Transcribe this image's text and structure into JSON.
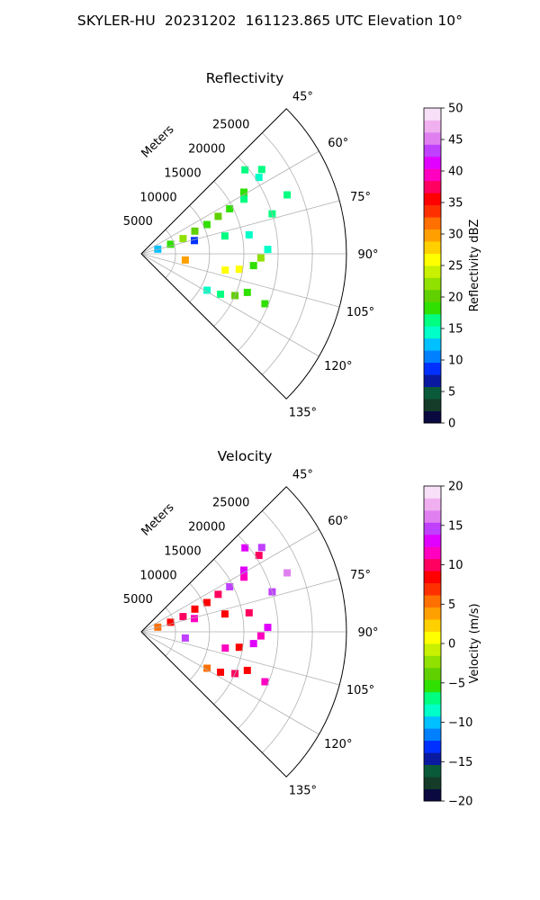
{
  "figure": {
    "title": "SKYLER-HU  20231202  161123.865 UTC Elevation 10°"
  },
  "chart_data": [
    {
      "type": "heatmap",
      "projection": "polar-sector",
      "title": "Reflectivity",
      "radial_label": "Meters",
      "radial_ticks": [
        "5000",
        "10000",
        "15000",
        "20000",
        "25000"
      ],
      "radial_range": [
        0,
        30000
      ],
      "angle_ticks": [
        "45°",
        "60°",
        "75°",
        "90°",
        "105°",
        "120°",
        "135°"
      ],
      "angle_range": [
        45,
        135
      ],
      "grid": true,
      "colorbar": {
        "label": "Reflectivity dBZ",
        "range": [
          0,
          50
        ],
        "ticks": [
          "0",
          "5",
          "10",
          "15",
          "20",
          "25",
          "30",
          "35",
          "40",
          "45",
          "50"
        ],
        "colors": [
          "#0a0a40",
          "#143c28",
          "#0a5a3a",
          "#0a1aa0",
          "#0030ff",
          "#0080ff",
          "#00c0ff",
          "#00ffc8",
          "#00ff80",
          "#30e000",
          "#60d000",
          "#90e000",
          "#c8f000",
          "#ffff00",
          "#ffd000",
          "#ffa000",
          "#ff7000",
          "#ff3000",
          "#ff0000",
          "#ff0060",
          "#ff00c0",
          "#e000ff",
          "#c040ff",
          "#e080f0",
          "#f0b0f0",
          "#f8e0f8"
        ]
      },
      "cells": [
        {
          "a": 51,
          "r": 19500,
          "val": 16
        },
        {
          "a": 55,
          "r": 21500,
          "val": 17
        },
        {
          "a": 57,
          "r": 20500,
          "val": 15
        },
        {
          "a": 59,
          "r": 17500,
          "val": 18
        },
        {
          "a": 62,
          "r": 17000,
          "val": 16
        },
        {
          "a": 63,
          "r": 14500,
          "val": 19
        },
        {
          "a": 64,
          "r": 12500,
          "val": 21
        },
        {
          "a": 66,
          "r": 10500,
          "val": 18
        },
        {
          "a": 67,
          "r": 8500,
          "val": 20
        },
        {
          "a": 70,
          "r": 6500,
          "val": 22
        },
        {
          "a": 72,
          "r": 4500,
          "val": 19
        },
        {
          "a": 74,
          "r": 2500,
          "val": 13
        },
        {
          "a": 76,
          "r": 8000,
          "val": 8
        },
        {
          "a": 78,
          "r": 12500,
          "val": 17
        },
        {
          "a": 80,
          "r": 16000,
          "val": 15
        },
        {
          "a": 73,
          "r": 20000,
          "val": 16
        },
        {
          "a": 68,
          "r": 23000,
          "val": 17
        },
        {
          "a": 88,
          "r": 18500,
          "val": 15
        },
        {
          "a": 92,
          "r": 17500,
          "val": 22
        },
        {
          "a": 96,
          "r": 16500,
          "val": 18
        },
        {
          "a": 99,
          "r": 14500,
          "val": 26
        },
        {
          "a": 101,
          "r": 12500,
          "val": 25
        },
        {
          "a": 98,
          "r": 6500,
          "val": 29
        },
        {
          "a": 110,
          "r": 16500,
          "val": 19
        },
        {
          "a": 114,
          "r": 15000,
          "val": 21
        },
        {
          "a": 117,
          "r": 13000,
          "val": 16
        },
        {
          "a": 119,
          "r": 11000,
          "val": 14
        },
        {
          "a": 112,
          "r": 19500,
          "val": 18
        }
      ]
    },
    {
      "type": "heatmap",
      "projection": "polar-sector",
      "title": "Velocity",
      "radial_label": "Meters",
      "radial_ticks": [
        "5000",
        "10000",
        "15000",
        "20000",
        "25000"
      ],
      "radial_range": [
        0,
        30000
      ],
      "angle_ticks": [
        "45°",
        "60°",
        "75°",
        "90°",
        "105°",
        "120°",
        "135°"
      ],
      "angle_range": [
        45,
        135
      ],
      "grid": true,
      "colorbar": {
        "label": "Velocity (m/s)",
        "range": [
          -20,
          20
        ],
        "ticks": [
          "−20",
          "−15",
          "−10",
          "−5",
          "0",
          "5",
          "10",
          "15",
          "20"
        ],
        "colors": [
          "#0a0a40",
          "#143c28",
          "#0a5a3a",
          "#0a1aa0",
          "#0030ff",
          "#0080ff",
          "#00c0ff",
          "#00ffc8",
          "#00ff80",
          "#30e000",
          "#60d000",
          "#90e000",
          "#c8f000",
          "#ffff00",
          "#ffd000",
          "#ffa000",
          "#ff7000",
          "#ff3000",
          "#ff0000",
          "#ff0060",
          "#ff00c0",
          "#e000ff",
          "#c040ff",
          "#e080f0",
          "#f0b0f0",
          "#f8e0f8"
        ]
      },
      "cells": [
        {
          "a": 51,
          "r": 19500,
          "val": 13
        },
        {
          "a": 55,
          "r": 21500,
          "val": 14
        },
        {
          "a": 57,
          "r": 20500,
          "val": 10
        },
        {
          "a": 59,
          "r": 17500,
          "val": 13
        },
        {
          "a": 62,
          "r": 17000,
          "val": 11
        },
        {
          "a": 63,
          "r": 14500,
          "val": 14
        },
        {
          "a": 64,
          "r": 12500,
          "val": 10
        },
        {
          "a": 66,
          "r": 10500,
          "val": 9
        },
        {
          "a": 67,
          "r": 8500,
          "val": 9
        },
        {
          "a": 70,
          "r": 6500,
          "val": 10
        },
        {
          "a": 72,
          "r": 4500,
          "val": 8
        },
        {
          "a": 74,
          "r": 2500,
          "val": 6
        },
        {
          "a": 76,
          "r": 8000,
          "val": 11
        },
        {
          "a": 78,
          "r": 12500,
          "val": 9
        },
        {
          "a": 80,
          "r": 16000,
          "val": 10
        },
        {
          "a": 73,
          "r": 20000,
          "val": 15
        },
        {
          "a": 68,
          "r": 23000,
          "val": 16
        },
        {
          "a": 88,
          "r": 18500,
          "val": 13
        },
        {
          "a": 92,
          "r": 17500,
          "val": 12
        },
        {
          "a": 96,
          "r": 16500,
          "val": 13
        },
        {
          "a": 99,
          "r": 14500,
          "val": 9
        },
        {
          "a": 101,
          "r": 12500,
          "val": 11
        },
        {
          "a": 98,
          "r": 6500,
          "val": 14
        },
        {
          "a": 110,
          "r": 16500,
          "val": 9
        },
        {
          "a": 114,
          "r": 15000,
          "val": 10
        },
        {
          "a": 117,
          "r": 13000,
          "val": 8
        },
        {
          "a": 119,
          "r": 11000,
          "val": 5
        },
        {
          "a": 112,
          "r": 19500,
          "val": 12
        }
      ]
    }
  ]
}
